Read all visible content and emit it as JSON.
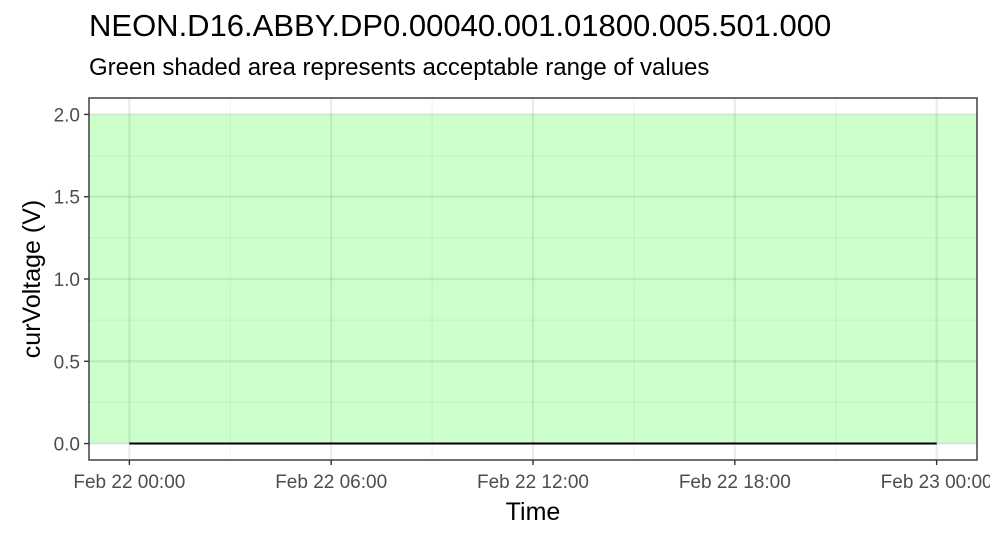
{
  "chart_data": {
    "type": "line",
    "title": "NEON.D16.ABBY.DP0.00040.001.01800.005.501.000",
    "subtitle": "Green shaded area represents acceptable range of values",
    "xlabel": "Time",
    "ylabel": "curVoltage (V)",
    "x_ticks": [
      "Feb 22 00:00",
      "Feb 22 06:00",
      "Feb 22 12:00",
      "Feb 22 18:00",
      "Feb 23 00:00"
    ],
    "x_tick_hours": [
      0,
      6,
      12,
      18,
      24
    ],
    "xlim_hours": [
      -1.2,
      25.2
    ],
    "y_ticks": [
      "0.0",
      "0.5",
      "1.0",
      "1.5",
      "2.0"
    ],
    "y_tick_values": [
      0,
      0.5,
      1.0,
      1.5,
      2.0
    ],
    "ylim": [
      -0.1,
      2.1
    ],
    "acceptable_range": {
      "ymin": 0,
      "ymax": 2.0,
      "color": "#ccffcc"
    },
    "grid": true,
    "series": [
      {
        "color": "#000000",
        "x_hours": [
          0,
          24
        ],
        "values": [
          0,
          0
        ]
      }
    ]
  }
}
